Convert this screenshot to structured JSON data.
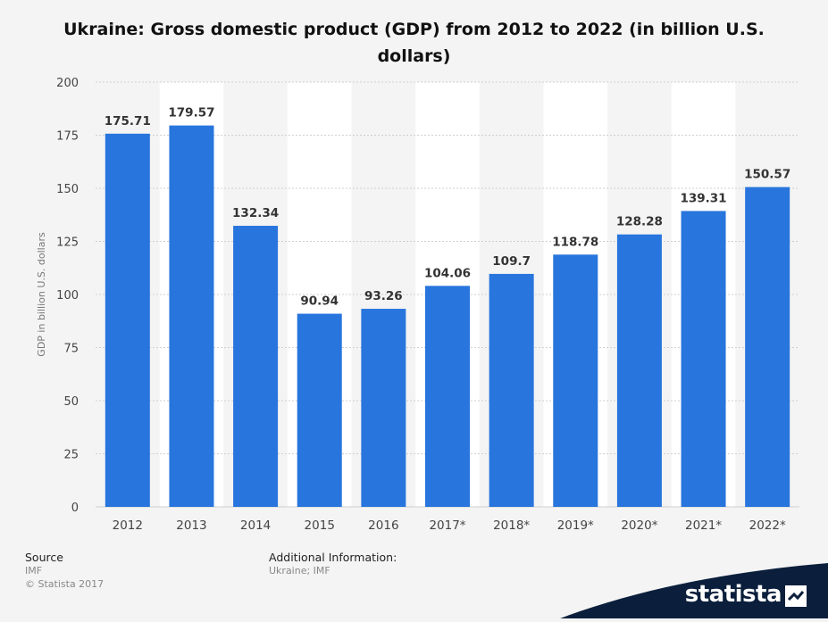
{
  "chart_data": {
    "type": "bar",
    "title_line1": "Ukraine: Gross domestic product (GDP) from 2012 to 2022 (in billion U.S.",
    "title_line2": "dollars)",
    "ylabel": "GDP in billion U.S. dollars",
    "xlabel": "",
    "categories": [
      "2012",
      "2013",
      "2014",
      "2015",
      "2016",
      "2017*",
      "2018*",
      "2019*",
      "2020*",
      "2021*",
      "2022*"
    ],
    "values": [
      175.71,
      179.57,
      132.34,
      90.94,
      93.26,
      104.06,
      109.7,
      118.78,
      128.28,
      139.31,
      150.57
    ],
    "value_labels": [
      "175.71",
      "179.57",
      "132.34",
      "90.94",
      "93.26",
      "104.06",
      "109.7",
      "118.78",
      "128.28",
      "139.31",
      "150.57"
    ],
    "ylim": [
      0,
      200
    ],
    "yticks": [
      "0",
      "25",
      "50",
      "75",
      "100",
      "125",
      "150",
      "175",
      "200"
    ],
    "grid": true,
    "bar_color": "#2875dd"
  },
  "footer": {
    "source_heading": "Source",
    "source_value": "IMF",
    "copyright": "© Statista 2017",
    "additional_heading": "Additional Information:",
    "additional_value": "Ukraine; IMF"
  },
  "logo": {
    "text": "statista",
    "icon": "statista-logo-icon",
    "color": "#0b1f3c"
  }
}
